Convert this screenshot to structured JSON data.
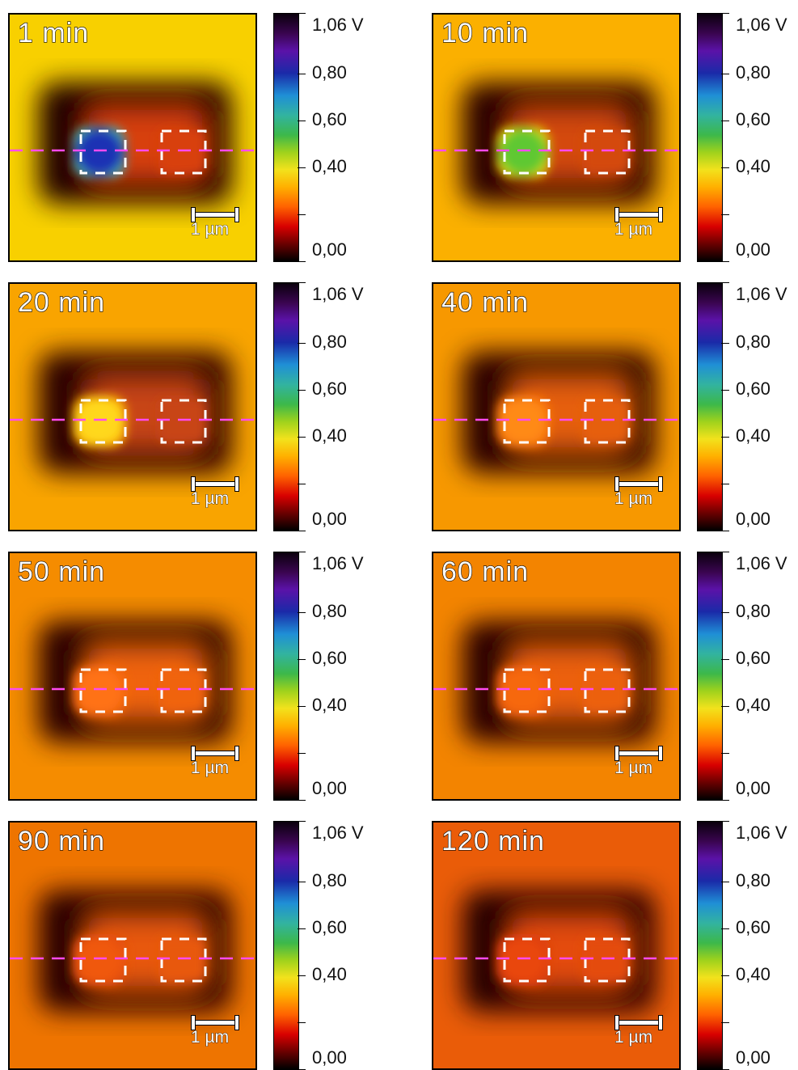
{
  "panels": [
    {
      "title": "1 min",
      "left_box": "#1f32b4",
      "left_ring": "#49c8a8",
      "right_box": "#d84010",
      "bg": "#f8d000",
      "dark": "#240000"
    },
    {
      "title": "10 min",
      "left_box": "#5fc832",
      "left_ring": "#ffe000",
      "right_box": "#d44a10",
      "bg": "#fbb000",
      "dark": "#2a0200"
    },
    {
      "title": "20 min",
      "left_box": "#ffd81a",
      "left_ring": "#ffb000",
      "right_box": "#c84412",
      "bg": "#f9a400",
      "dark": "#2a0200"
    },
    {
      "title": "40 min",
      "left_box": "#ff8a12",
      "left_ring": "#f87010",
      "right_box": "#e65e10",
      "bg": "#f79800",
      "dark": "#2b0300"
    },
    {
      "title": "50 min",
      "left_box": "#ff7212",
      "left_ring": "#f06410",
      "right_box": "#f06410",
      "bg": "#f58c00",
      "dark": "#2b0300"
    },
    {
      "title": "60 min",
      "left_box": "#f6680f",
      "left_ring": "#ea5a10",
      "right_box": "#ec6010",
      "bg": "#f38400",
      "dark": "#2a0300"
    },
    {
      "title": "90 min",
      "left_box": "#f0580f",
      "left_ring": "#e04a10",
      "right_box": "#e8580f",
      "bg": "#ee7400",
      "dark": "#2a0200"
    },
    {
      "title": "120 min",
      "left_box": "#e9460c",
      "left_ring": "#d63a0e",
      "right_box": "#e44c0d",
      "bg": "#ea5c08",
      "dark": "#280100"
    }
  ],
  "scale_label": "1 µm",
  "colorbar": {
    "labels": [
      "1,06 V",
      "0,80",
      "0,60",
      "0,40",
      "0,00"
    ],
    "values": [
      1.06,
      0.8,
      0.6,
      0.4,
      0.0
    ],
    "max": 1.06
  },
  "colors": {
    "profile_line": "#ff4af0",
    "marker": "#ffffff"
  }
}
